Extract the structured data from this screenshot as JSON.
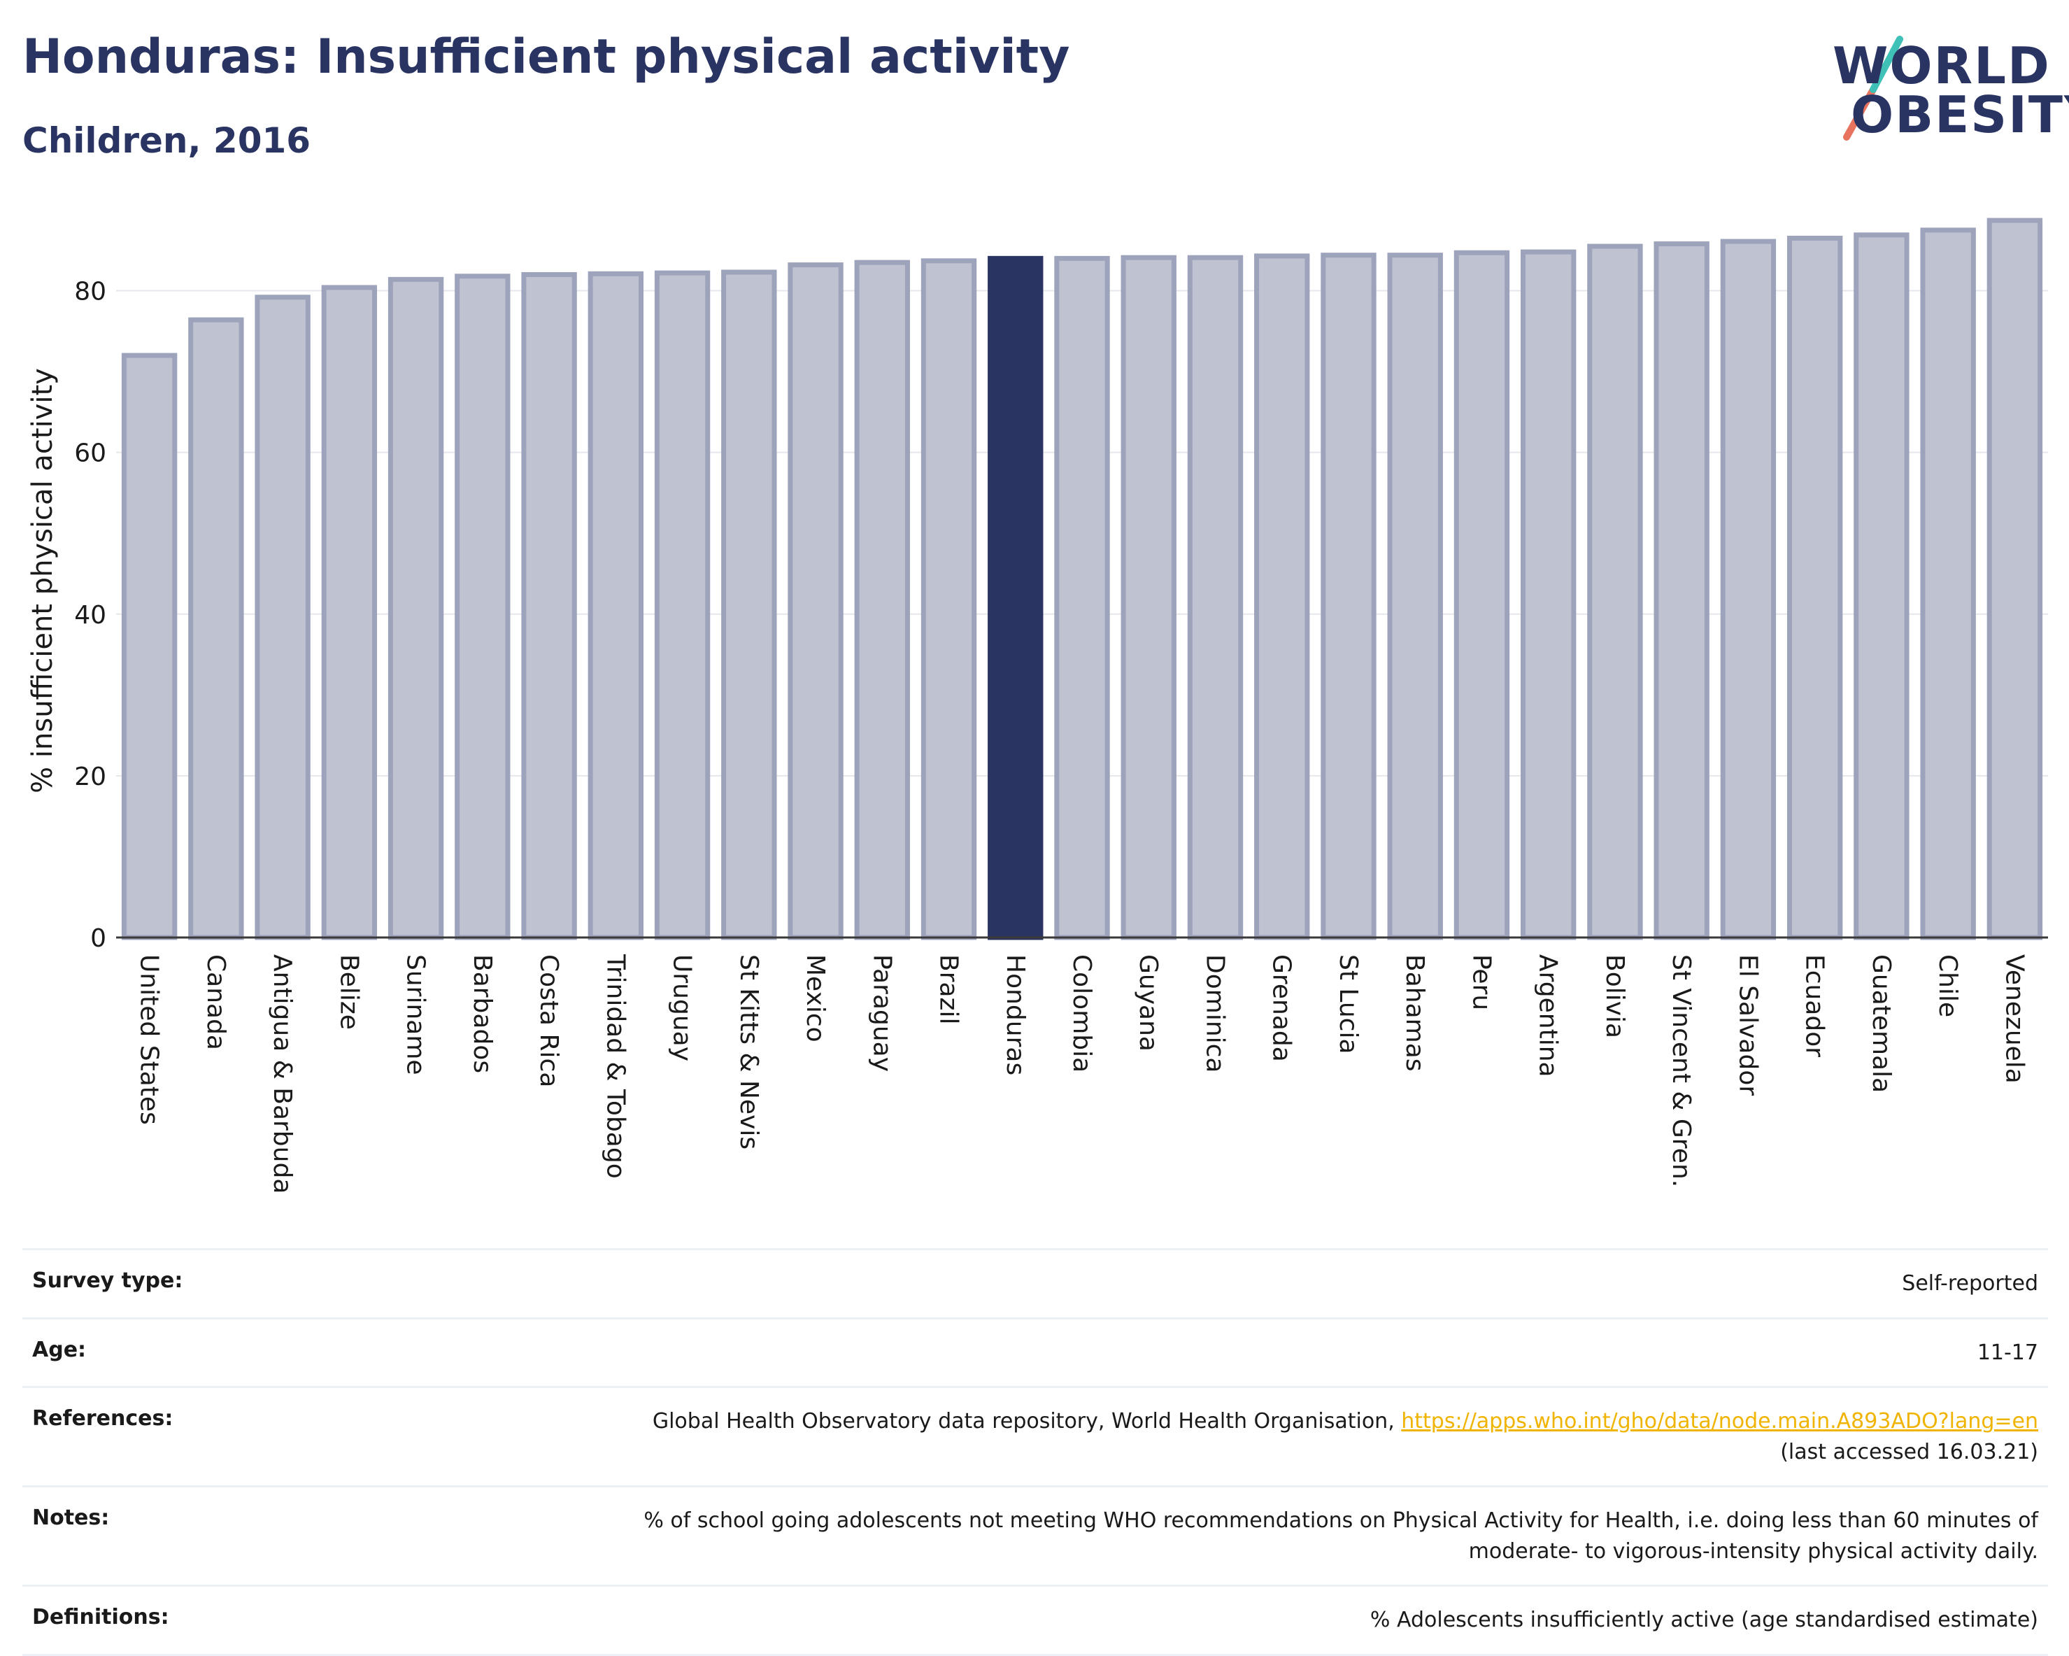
{
  "header": {
    "title": "Honduras: Insufficient physical activity",
    "subtitle": "Children, 2016"
  },
  "logo": {
    "line1": "WORLD",
    "line2": "OBESITY"
  },
  "chart_data": {
    "type": "bar",
    "ylabel": "% insufficient physical activity",
    "xlabel": "",
    "ylim": [
      0,
      90
    ],
    "yticks": [
      0,
      20,
      40,
      60,
      80
    ],
    "grid": true,
    "highlight": "Honduras",
    "colors": {
      "bar": "#bfc2d0",
      "bar_border": "#9ea3bc",
      "highlight": "#2a3462"
    },
    "categories": [
      "United States",
      "Canada",
      "Antigua & Barbuda",
      "Belize",
      "Suriname",
      "Barbados",
      "Costa Rica",
      "Trinidad & Tobago",
      "Uruguay",
      "St Kitts & Nevis",
      "Mexico",
      "Paraguay",
      "Brazil",
      "Honduras",
      "Colombia",
      "Guyana",
      "Dominica",
      "Grenada",
      "St Lucia",
      "Bahamas",
      "Peru",
      "Argentina",
      "Bolivia",
      "St Vincent & Gren.",
      "El Salvador",
      "Ecuador",
      "Guatemala",
      "Chile",
      "Venezuela"
    ],
    "values": [
      72.0,
      76.4,
      79.2,
      80.4,
      81.4,
      81.8,
      82.0,
      82.1,
      82.2,
      82.3,
      83.2,
      83.5,
      83.7,
      84.0,
      84.0,
      84.1,
      84.1,
      84.3,
      84.4,
      84.4,
      84.7,
      84.8,
      85.5,
      85.8,
      86.1,
      86.5,
      86.9,
      87.5,
      88.7
    ]
  },
  "info": {
    "survey_type": {
      "label": "Survey type:",
      "value": "Self-reported"
    },
    "age": {
      "label": "Age:",
      "value": "11-17"
    },
    "references": {
      "label": "References:",
      "text": "Global Health Observatory data repository, World Health Organisation, ",
      "link": "https://apps.who.int/gho/data/node.main.A893ADO?lang=en",
      "accessed": "(last accessed 16.03.21)"
    },
    "notes": {
      "label": "Notes:",
      "line1": "% of school going adolescents not meeting WHO recommendations on Physical Activity for Health, i.e. doing less than 60 minutes of",
      "line2": "moderate- to vigorous-intensity physical activity daily."
    },
    "definitions": {
      "label": "Definitions:",
      "value": "% Adolescents insufficiently active (age standardised estimate)"
    }
  }
}
